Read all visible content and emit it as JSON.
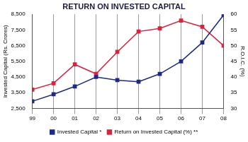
{
  "chart_data": {
    "type": "line",
    "title": "RETURN ON INVESTED CAPITAL",
    "categories": [
      "99",
      "00",
      "01",
      "02",
      "03",
      "04",
      "05",
      "06",
      "07",
      "08"
    ],
    "series": [
      {
        "name": "Invested Capital *",
        "color": "#1c2a8c",
        "marker": "square",
        "axis": "y",
        "values": [
          2950,
          3400,
          3900,
          4500,
          4300,
          4200,
          4700,
          5500,
          6700,
          8450
        ]
      },
      {
        "name": "Return on Invested Capital (%) **",
        "color": "#e0203c",
        "marker": "square",
        "axis": "y2",
        "values": [
          36,
          38,
          44,
          41,
          48,
          54.5,
          55.5,
          58,
          56,
          50
        ]
      }
    ],
    "y_label": "Invested Capital (Rs. Crores)",
    "y2_label": "R.O.I.C. (%)",
    "ylim": [
      2500,
      8500
    ],
    "yticks": [
      2500,
      3500,
      4500,
      5500,
      6500,
      7500,
      8500
    ],
    "y2lim": [
      30,
      60
    ],
    "y2ticks": [
      30,
      35,
      40,
      45,
      50,
      55,
      60
    ],
    "grid": true,
    "legend": "bottom"
  }
}
